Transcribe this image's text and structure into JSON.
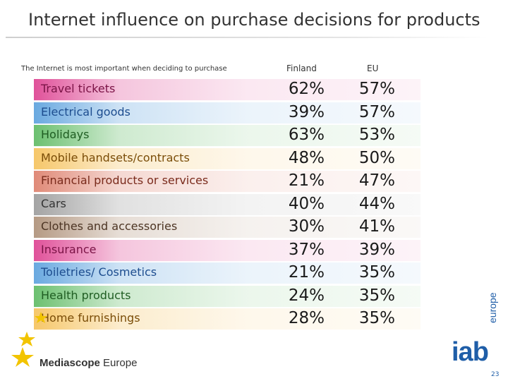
{
  "title": "Internet influence on purchase decisions for products",
  "subtitle": "The Internet is most important when deciding to purchase",
  "chart_data": {
    "type": "table",
    "title": "Internet influence on purchase decisions for products",
    "subtitle": "The Internet is most important when deciding to purchase",
    "columns": [
      "Finland",
      "EU"
    ],
    "rows": [
      {
        "label": "Travel tickets",
        "finland": "62%",
        "eu": "57%",
        "color": "#e0529a",
        "text_color": "#7a1346"
      },
      {
        "label": "Electrical goods",
        "finland": "39%",
        "eu": "57%",
        "color": "#6aa9e0",
        "text_color": "#1d4d8f"
      },
      {
        "label": "Holidays",
        "finland": "63%",
        "eu": "53%",
        "color": "#6cc070",
        "text_color": "#1f5d22"
      },
      {
        "label": "Mobile handsets/contracts",
        "finland": "48%",
        "eu": "50%",
        "color": "#f6c76a",
        "text_color": "#7a4d08"
      },
      {
        "label": "Financial products or services",
        "finland": "21%",
        "eu": "47%",
        "color": "#e08a78",
        "text_color": "#7a2b1c"
      },
      {
        "label": "Cars",
        "finland": "40%",
        "eu": "44%",
        "color": "#a4a4a4",
        "text_color": "#333333"
      },
      {
        "label": "Clothes and accessories",
        "finland": "30%",
        "eu": "41%",
        "color": "#b59a84",
        "text_color": "#4d3524"
      },
      {
        "label": "Insurance",
        "finland": "37%",
        "eu": "39%",
        "color": "#e0529a",
        "text_color": "#7a1346"
      },
      {
        "label": "Toiletries/ Cosmetics",
        "finland": "21%",
        "eu": "35%",
        "color": "#6aa9e0",
        "text_color": "#1d4d8f"
      },
      {
        "label": "Health products",
        "finland": "24%",
        "eu": "35%",
        "color": "#6cc070",
        "text_color": "#1f5d22"
      },
      {
        "label": "Home furnishings",
        "finland": "28%",
        "eu": "35%",
        "color": "#f6c76a",
        "text_color": "#7a4d08"
      }
    ]
  },
  "footer": {
    "logo_bold": "Mediascope",
    "logo_regular": " Europe",
    "iab_text": "iab",
    "iab_sub": "europe",
    "page_number": "23"
  }
}
